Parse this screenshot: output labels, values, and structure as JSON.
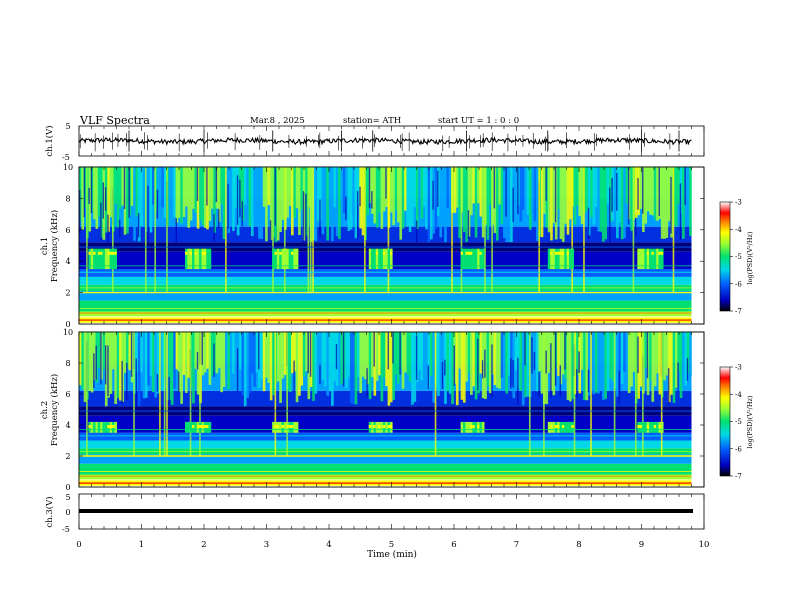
{
  "header": {
    "title": "VLF  Spectra",
    "date": "Mar.8  , 2025",
    "station": "station= ATH",
    "start": "start  UT  =    1  :  0   :  0"
  },
  "chart_data": [
    {
      "type": "line",
      "name": "ch1-waveform",
      "ylabel": "ch.1(V)",
      "xlim": [
        0,
        10
      ],
      "ylim": [
        -5,
        5
      ],
      "y_ticks": [
        "5",
        "-5"
      ],
      "level": 0,
      "spike_times_min": [
        0.8,
        2.0,
        3.1,
        4.2,
        4.7,
        6.2,
        7.5,
        9.0,
        9.6
      ]
    },
    {
      "type": "heatmap",
      "name": "ch1-spectrogram",
      "ylabel_line1": "ch.1",
      "ylabel_line2": "Frequency (kHz)",
      "xlim": [
        0,
        9.8
      ],
      "ylim": [
        0,
        10
      ],
      "y_ticks": [
        "0",
        "2",
        "4",
        "6",
        "8",
        "10"
      ],
      "colorbar": {
        "label": "log(PSD)(V²/Hz)",
        "range": [
          -7,
          -3
        ],
        "ticks": [
          "-3",
          "-4",
          "-5",
          "-6",
          "-7"
        ],
        "colors": [
          "#00004a",
          "#0000ff",
          "#00a0ff",
          "#00e8e8",
          "#00e070",
          "#a0ff30",
          "#ffff00",
          "#ff8000",
          "#ff0000",
          "#ffffff"
        ]
      },
      "bursts_min": [
        [
          0.15,
          0.6
        ],
        [
          1.7,
          2.1
        ],
        [
          3.1,
          3.5
        ],
        [
          4.65,
          5.0
        ],
        [
          6.1,
          6.5
        ],
        [
          7.5,
          7.9
        ],
        [
          8.95,
          9.35
        ]
      ],
      "burst_band_khz": [
        3.5,
        4.8
      ]
    },
    {
      "type": "heatmap",
      "name": "ch2-spectrogram",
      "ylabel_line1": "ch.2",
      "ylabel_line2": "Frequency (kHz)",
      "xlim": [
        0,
        9.8
      ],
      "ylim": [
        0,
        10
      ],
      "y_ticks": [
        "0",
        "2",
        "4",
        "6",
        "8",
        "10"
      ],
      "colorbar": {
        "label": "log(PSD)(V²/Hz)",
        "range": [
          -7,
          -3
        ],
        "ticks": [
          "-3",
          "-4",
          "-5",
          "-6",
          "-7"
        ],
        "colors": [
          "#00004a",
          "#0000ff",
          "#00a0ff",
          "#00e8e8",
          "#00e070",
          "#a0ff30",
          "#ffff00",
          "#ff8000",
          "#ff0000",
          "#ffffff"
        ]
      },
      "bursts_min": [
        [
          0.15,
          0.6
        ],
        [
          1.7,
          2.1
        ],
        [
          3.1,
          3.5
        ],
        [
          4.65,
          5.0
        ],
        [
          6.1,
          6.5
        ],
        [
          7.5,
          7.9
        ],
        [
          8.95,
          9.35
        ]
      ],
      "burst_band_khz": [
        3.5,
        4.2
      ]
    },
    {
      "type": "line",
      "name": "ch3-waveform",
      "ylabel": "ch.3(V)",
      "xlim": [
        0,
        10
      ],
      "ylim": [
        -5,
        5
      ],
      "y_ticks": [
        "5",
        "0",
        "-5"
      ],
      "level": -0.8
    }
  ],
  "xaxis": {
    "label": "Time  (min)",
    "ticks": [
      "0",
      "1",
      "2",
      "3",
      "4",
      "5",
      "6",
      "7",
      "8",
      "9",
      "10"
    ]
  }
}
